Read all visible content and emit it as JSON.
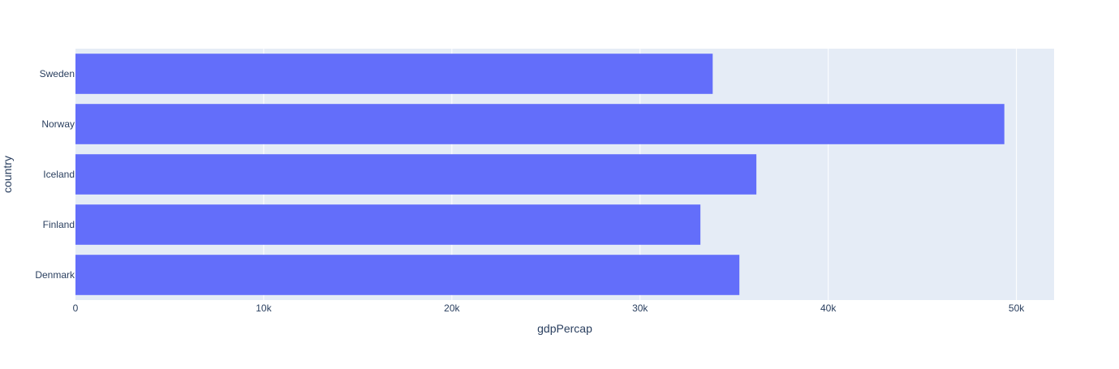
{
  "chart_data": {
    "type": "bar",
    "orientation": "horizontal",
    "title": "",
    "xlabel": "gdpPercap",
    "ylabel": "country",
    "categories": [
      "Denmark",
      "Finland",
      "Iceland",
      "Norway",
      "Sweden"
    ],
    "values": [
      35278,
      33207,
      36181,
      49357,
      33860
    ],
    "xlim": [
      0,
      52000
    ],
    "xticks": [
      0,
      10000,
      20000,
      30000,
      40000,
      50000
    ],
    "xtick_labels": [
      "0",
      "10k",
      "20k",
      "30k",
      "40k",
      "50k"
    ],
    "grid": true,
    "legend": "none"
  },
  "colors": {
    "bar": "#636efa",
    "plot_background": "#e5ecf6",
    "gridline": "#ffffff",
    "text": "#2a3f5f"
  }
}
